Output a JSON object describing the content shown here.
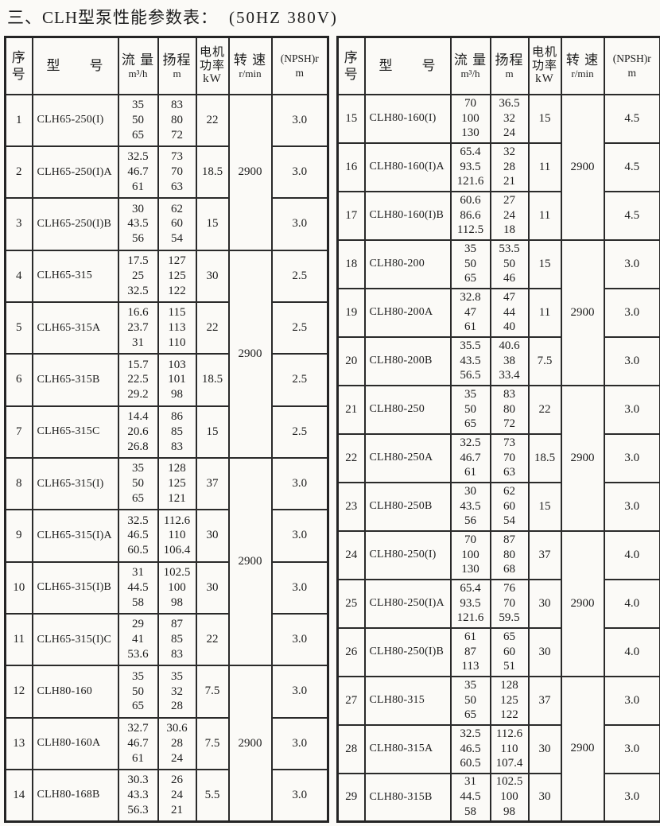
{
  "page": {
    "title": "三、CLH型泵性能参数表：",
    "subtitle": "(50HZ  380V)"
  },
  "header": {
    "serial_line1": "序",
    "serial_line2": "号",
    "model": "型　　号",
    "flow_label": "流 量",
    "flow_unit": "m³/h",
    "head_label": "扬程",
    "head_unit": "m",
    "power_line1": "电机",
    "power_line2": "功率",
    "power_line3": "kW",
    "speed_label": "转 速",
    "speed_unit": "r/min",
    "npsh_label": "(NPSH)r",
    "npsh_unit": "m"
  },
  "left_table": {
    "rows": [
      {
        "no": "1",
        "model": "CLH65-250(I)",
        "flow": [
          "35",
          "50",
          "65"
        ],
        "head": [
          "83",
          "80",
          "72"
        ],
        "power": "22",
        "npsh": "3.0"
      },
      {
        "no": "2",
        "model": "CLH65-250(I)A",
        "flow": [
          "32.5",
          "46.7",
          "61"
        ],
        "head": [
          "73",
          "70",
          "63"
        ],
        "power": "18.5",
        "npsh": "3.0"
      },
      {
        "no": "3",
        "model": "CLH65-250(I)B",
        "flow": [
          "30",
          "43.5",
          "56"
        ],
        "head": [
          "62",
          "60",
          "54"
        ],
        "power": "15",
        "npsh": "3.0"
      },
      {
        "no": "4",
        "model": "CLH65-315",
        "flow": [
          "17.5",
          "25",
          "32.5"
        ],
        "head": [
          "127",
          "125",
          "122"
        ],
        "power": "30",
        "npsh": "2.5"
      },
      {
        "no": "5",
        "model": "CLH65-315A",
        "flow": [
          "16.6",
          "23.7",
          "31"
        ],
        "head": [
          "115",
          "113",
          "110"
        ],
        "power": "22",
        "npsh": "2.5"
      },
      {
        "no": "6",
        "model": "CLH65-315B",
        "flow": [
          "15.7",
          "22.5",
          "29.2"
        ],
        "head": [
          "103",
          "101",
          "98"
        ],
        "power": "18.5",
        "npsh": "2.5"
      },
      {
        "no": "7",
        "model": "CLH65-315C",
        "flow": [
          "14.4",
          "20.6",
          "26.8"
        ],
        "head": [
          "86",
          "85",
          "83"
        ],
        "power": "15",
        "npsh": "2.5"
      },
      {
        "no": "8",
        "model": "CLH65-315(I)",
        "flow": [
          "35",
          "50",
          "65"
        ],
        "head": [
          "128",
          "125",
          "121"
        ],
        "power": "37",
        "npsh": "3.0"
      },
      {
        "no": "9",
        "model": "CLH65-315(I)A",
        "flow": [
          "32.5",
          "46.5",
          "60.5"
        ],
        "head": [
          "112.6",
          "110",
          "106.4"
        ],
        "power": "30",
        "npsh": "3.0"
      },
      {
        "no": "10",
        "model": "CLH65-315(I)B",
        "flow": [
          "31",
          "44.5",
          "58"
        ],
        "head": [
          "102.5",
          "100",
          "98"
        ],
        "power": "30",
        "npsh": "3.0"
      },
      {
        "no": "11",
        "model": "CLH65-315(I)C",
        "flow": [
          "29",
          "41",
          "53.6"
        ],
        "head": [
          "87",
          "85",
          "83"
        ],
        "power": "22",
        "npsh": "3.0"
      },
      {
        "no": "12",
        "model": "CLH80-160",
        "flow": [
          "35",
          "50",
          "65"
        ],
        "head": [
          "35",
          "32",
          "28"
        ],
        "power": "7.5",
        "npsh": "3.0"
      },
      {
        "no": "13",
        "model": "CLH80-160A",
        "flow": [
          "32.7",
          "46.7",
          "61"
        ],
        "head": [
          "30.6",
          "28",
          "24"
        ],
        "power": "7.5",
        "npsh": "3.0"
      },
      {
        "no": "14",
        "model": "CLH80-168B",
        "flow": [
          "30.3",
          "43.3",
          "56.3"
        ],
        "head": [
          "26",
          "24",
          "21"
        ],
        "power": "5.5",
        "npsh": "3.0"
      }
    ],
    "speed_groups": [
      {
        "start": 0,
        "span": 3,
        "value": "2900"
      },
      {
        "start": 3,
        "span": 4,
        "value": "2900"
      },
      {
        "start": 7,
        "span": 4,
        "value": "2900"
      },
      {
        "start": 11,
        "span": 3,
        "value": "2900"
      }
    ]
  },
  "right_table": {
    "rows": [
      {
        "no": "15",
        "model": "CLH80-160(I)",
        "flow": [
          "70",
          "100",
          "130"
        ],
        "head": [
          "36.5",
          "32",
          "24"
        ],
        "power": "15",
        "npsh": "4.5"
      },
      {
        "no": "16",
        "model": "CLH80-160(I)A",
        "flow": [
          "65.4",
          "93.5",
          "121.6"
        ],
        "head": [
          "32",
          "28",
          "21"
        ],
        "power": "11",
        "npsh": "4.5"
      },
      {
        "no": "17",
        "model": "CLH80-160(I)B",
        "flow": [
          "60.6",
          "86.6",
          "112.5"
        ],
        "head": [
          "27",
          "24",
          "18"
        ],
        "power": "11",
        "npsh": "4.5"
      },
      {
        "no": "18",
        "model": "CLH80-200",
        "flow": [
          "35",
          "50",
          "65"
        ],
        "head": [
          "53.5",
          "50",
          "46"
        ],
        "power": "15",
        "npsh": "3.0"
      },
      {
        "no": "19",
        "model": "CLH80-200A",
        "flow": [
          "32.8",
          "47",
          "61"
        ],
        "head": [
          "47",
          "44",
          "40"
        ],
        "power": "11",
        "npsh": "3.0"
      },
      {
        "no": "20",
        "model": "CLH80-200B",
        "flow": [
          "35.5",
          "43.5",
          "56.5"
        ],
        "head": [
          "40.6",
          "38",
          "33.4"
        ],
        "power": "7.5",
        "npsh": "3.0"
      },
      {
        "no": "21",
        "model": "CLH80-250",
        "flow": [
          "35",
          "50",
          "65"
        ],
        "head": [
          "83",
          "80",
          "72"
        ],
        "power": "22",
        "npsh": "3.0"
      },
      {
        "no": "22",
        "model": "CLH80-250A",
        "flow": [
          "32.5",
          "46.7",
          "61"
        ],
        "head": [
          "73",
          "70",
          "63"
        ],
        "power": "18.5",
        "npsh": "3.0"
      },
      {
        "no": "23",
        "model": "CLH80-250B",
        "flow": [
          "30",
          "43.5",
          "56"
        ],
        "head": [
          "62",
          "60",
          "54"
        ],
        "power": "15",
        "npsh": "3.0"
      },
      {
        "no": "24",
        "model": "CLH80-250(I)",
        "flow": [
          "70",
          "100",
          "130"
        ],
        "head": [
          "87",
          "80",
          "68"
        ],
        "power": "37",
        "npsh": "4.0"
      },
      {
        "no": "25",
        "model": "CLH80-250(I)A",
        "flow": [
          "65.4",
          "93.5",
          "121.6"
        ],
        "head": [
          "76",
          "70",
          "59.5"
        ],
        "power": "30",
        "npsh": "4.0"
      },
      {
        "no": "26",
        "model": "CLH80-250(I)B",
        "flow": [
          "61",
          "87",
          "113"
        ],
        "head": [
          "65",
          "60",
          "51"
        ],
        "power": "30",
        "npsh": "4.0"
      },
      {
        "no": "27",
        "model": "CLH80-315",
        "flow": [
          "35",
          "50",
          "65"
        ],
        "head": [
          "128",
          "125",
          "122"
        ],
        "power": "37",
        "npsh": "3.0"
      },
      {
        "no": "28",
        "model": "CLH80-315A",
        "flow": [
          "32.5",
          "46.5",
          "60.5"
        ],
        "head": [
          "112.6",
          "110",
          "107.4"
        ],
        "power": "30",
        "npsh": "3.0"
      },
      {
        "no": "29",
        "model": "CLH80-315B",
        "flow": [
          "31",
          "44.5",
          "58"
        ],
        "head": [
          "102.5",
          "100",
          "98"
        ],
        "power": "30",
        "npsh": "3.0"
      }
    ],
    "speed_groups": [
      {
        "start": 0,
        "span": 3,
        "value": "2900"
      },
      {
        "start": 3,
        "span": 3,
        "value": "2900"
      },
      {
        "start": 6,
        "span": 3,
        "value": "2900"
      },
      {
        "start": 9,
        "span": 3,
        "value": "2900"
      },
      {
        "start": 12,
        "span": 3,
        "value": "2900"
      }
    ]
  }
}
